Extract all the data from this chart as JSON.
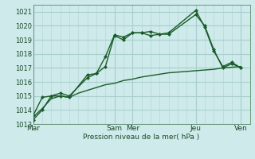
{
  "background_color": "#ceeaea",
  "grid_color_major": "#a8cece",
  "grid_color_minor": "#b8d8d8",
  "line_color": "#1a5c2a",
  "ylabel": "Pression niveau de la mer( hPa )",
  "ylim": [
    1013.0,
    1021.5
  ],
  "yticks": [
    1013,
    1014,
    1015,
    1016,
    1017,
    1018,
    1019,
    1020,
    1021
  ],
  "x_day_labels": [
    "Mar",
    "Sam",
    "Mer",
    "Jeu",
    "Ven"
  ],
  "x_day_positions": [
    0,
    9,
    11,
    18,
    23
  ],
  "xlim": [
    0,
    24
  ],
  "series1_x": [
    0,
    1,
    2,
    3,
    4,
    6,
    7,
    8,
    9,
    10,
    11,
    12,
    13,
    14,
    15,
    18,
    19,
    20,
    21,
    22,
    23
  ],
  "series1_y": [
    1013.3,
    1014.0,
    1015.0,
    1015.0,
    1014.9,
    1016.5,
    1016.6,
    1017.8,
    1019.35,
    1019.2,
    1019.5,
    1019.5,
    1019.6,
    1019.4,
    1019.5,
    1021.1,
    1019.9,
    1018.2,
    1017.1,
    1017.4,
    1017.0
  ],
  "series2_x": [
    0,
    1,
    2,
    3,
    4,
    6,
    7,
    8,
    9,
    10,
    11,
    12,
    13,
    14,
    15,
    18,
    19,
    20,
    21,
    22,
    23
  ],
  "series2_y": [
    1013.6,
    1014.9,
    1015.0,
    1015.2,
    1015.0,
    1016.3,
    1016.6,
    1017.1,
    1019.3,
    1019.0,
    1019.5,
    1019.5,
    1019.3,
    1019.4,
    1019.4,
    1020.8,
    1020.0,
    1018.3,
    1017.0,
    1017.3,
    1017.0
  ],
  "series3_x": [
    0,
    1,
    2,
    3,
    4,
    5,
    6,
    7,
    8,
    9,
    10,
    11,
    12,
    13,
    14,
    15,
    16,
    17,
    18,
    19,
    20,
    21,
    22,
    23
  ],
  "series3_y": [
    1013.5,
    1014.1,
    1014.8,
    1015.0,
    1014.9,
    1015.2,
    1015.4,
    1015.6,
    1015.8,
    1015.9,
    1016.1,
    1016.2,
    1016.35,
    1016.45,
    1016.55,
    1016.65,
    1016.7,
    1016.75,
    1016.8,
    1016.85,
    1016.9,
    1017.0,
    1017.05,
    1017.1
  ]
}
